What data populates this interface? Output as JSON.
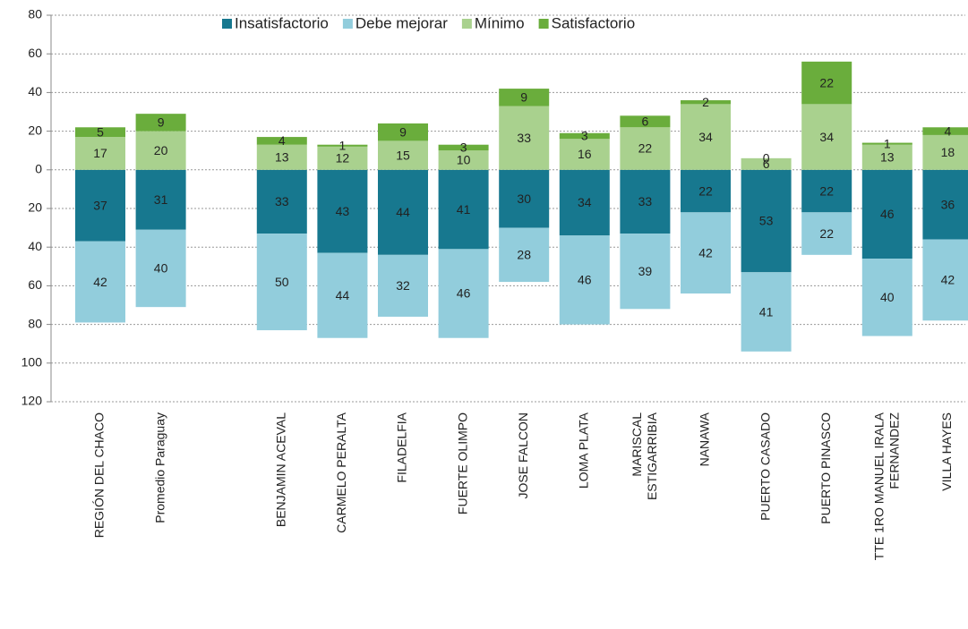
{
  "chart_data": {
    "type": "bar",
    "stacked": true,
    "categories": [
      "REGIÓN DEL CHACO",
      "Promedio Paraguay",
      null,
      "BENJAMIN ACEVAL",
      "CARMELO PERALTA",
      "FILADELFIA",
      "FUERTE OLIMPO",
      "JOSE FALCON",
      "LOMA PLATA",
      "MARISCAL ESTIGARRIBIA",
      "NANAWA",
      "PUERTO CASADO",
      "PUERTO PINASCO",
      "TTE 1RO MANUEL IRALA FERNANDEZ",
      "VILLA HAYES"
    ],
    "series": [
      {
        "name": "Insatisfactorio",
        "color": "#17788f",
        "values": [
          -37,
          -31,
          null,
          -33,
          -43,
          -44,
          -41,
          -30,
          -34,
          -33,
          -22,
          -53,
          -22,
          -46,
          -36
        ],
        "value_labels": [
          "37",
          "31",
          null,
          "33",
          "43",
          "44",
          "41",
          "30",
          "34",
          "33",
          "22",
          "53",
          "22",
          "46",
          "36"
        ]
      },
      {
        "name": "Debe mejorar",
        "color": "#92cddc",
        "values": [
          -42,
          -40,
          null,
          -50,
          -44,
          -32,
          -46,
          -28,
          -46,
          -39,
          -42,
          -41,
          -22,
          -40,
          -42
        ],
        "value_labels": [
          "42",
          "40",
          null,
          "50",
          "44",
          "32",
          "46",
          "28",
          "46",
          "39",
          "42",
          "41",
          "22",
          "40",
          "42"
        ]
      },
      {
        "name": "Mínimo",
        "color": "#a9d18e",
        "values": [
          17,
          20,
          null,
          13,
          12,
          15,
          10,
          33,
          16,
          22,
          34,
          6,
          34,
          13,
          18
        ]
      },
      {
        "name": "Satisfactorio",
        "color": "#6aad3c",
        "values": [
          5,
          9,
          null,
          4,
          1,
          9,
          3,
          9,
          3,
          6,
          2,
          0,
          22,
          1,
          4
        ]
      }
    ],
    "ylim": [
      -120,
      80
    ],
    "yticks": [
      {
        "value": -120,
        "label": "120"
      },
      {
        "value": -100,
        "label": "100"
      },
      {
        "value": -80,
        "label": "80"
      },
      {
        "value": -60,
        "label": "60"
      },
      {
        "value": -40,
        "label": "40"
      },
      {
        "value": -20,
        "label": "20"
      },
      0,
      20,
      40,
      60,
      80
    ],
    "grid": true,
    "legend": "top"
  }
}
